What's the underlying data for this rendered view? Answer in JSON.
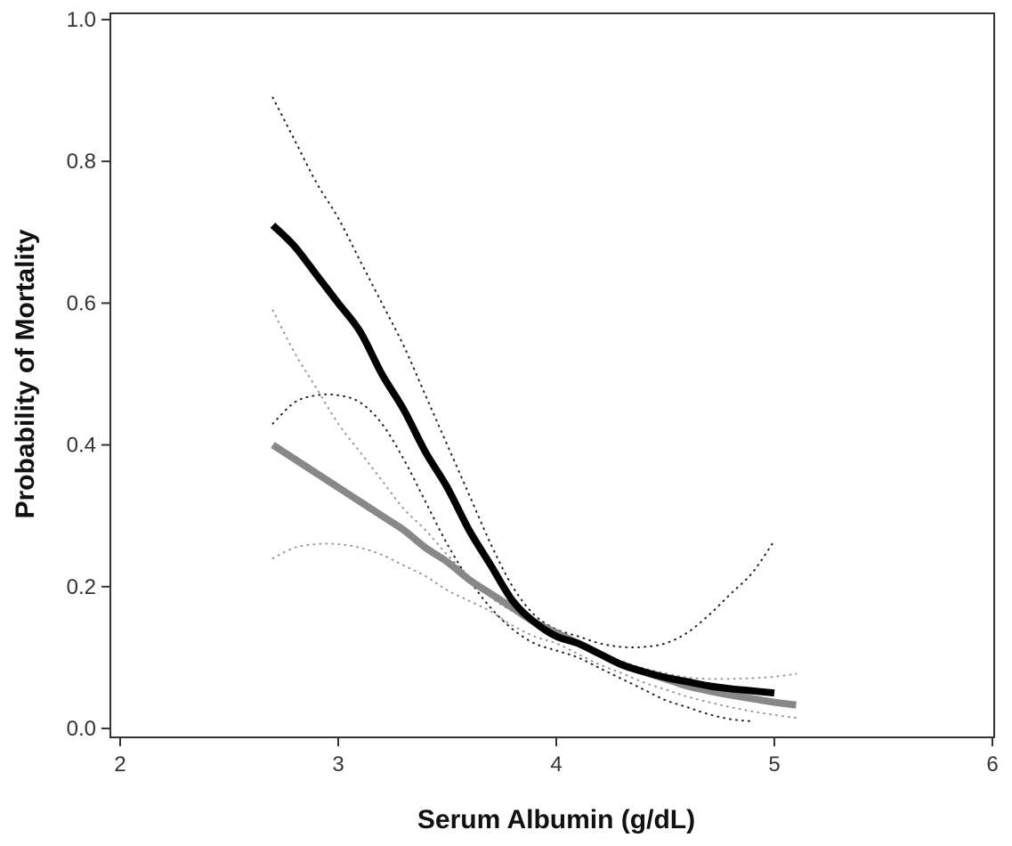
{
  "chart_data": {
    "type": "line",
    "title": "",
    "xlabel": "Serum Albumin (g/dL)",
    "ylabel": "Probability of Mortality",
    "xlim": [
      2,
      6
    ],
    "ylim": [
      0.0,
      1.0
    ],
    "x_ticks": [
      "2",
      "3",
      "4",
      "5",
      "6"
    ],
    "y_ticks": [
      "0.0",
      "0.2",
      "0.4",
      "0.6",
      "0.8",
      "1.0"
    ],
    "grid": false,
    "legend": "none",
    "colors": {
      "black": "#000000",
      "gray": "#888888",
      "black_ci": "#222222",
      "gray_ci": "#999999"
    },
    "series": [
      {
        "style": "solid-thick",
        "color": "#000000",
        "x": [
          2.7,
          2.8,
          2.9,
          3.0,
          3.1,
          3.2,
          3.3,
          3.4,
          3.5,
          3.6,
          3.7,
          3.8,
          3.9,
          4.0,
          4.1,
          4.2,
          4.3,
          4.4,
          4.5,
          4.6,
          4.7,
          4.8,
          4.9,
          5.0
        ],
        "y": [
          0.71,
          0.68,
          0.64,
          0.6,
          0.56,
          0.5,
          0.45,
          0.39,
          0.34,
          0.28,
          0.23,
          0.18,
          0.15,
          0.13,
          0.12,
          0.105,
          0.09,
          0.08,
          0.072,
          0.066,
          0.06,
          0.056,
          0.053,
          0.05
        ]
      },
      {
        "style": "dotted",
        "color": "#222222",
        "x": [
          2.7,
          2.8,
          2.9,
          3.0,
          3.1,
          3.2,
          3.3,
          3.4,
          3.5,
          3.6,
          3.7,
          3.8,
          3.9,
          4.0,
          4.1,
          4.2,
          4.3,
          4.4,
          4.5,
          4.6,
          4.7,
          4.8,
          4.9,
          5.0
        ],
        "y": [
          0.89,
          0.83,
          0.77,
          0.72,
          0.66,
          0.6,
          0.54,
          0.47,
          0.4,
          0.33,
          0.26,
          0.2,
          0.16,
          0.14,
          0.13,
          0.12,
          0.115,
          0.115,
          0.12,
          0.135,
          0.16,
          0.19,
          0.22,
          0.265
        ]
      },
      {
        "style": "dotted",
        "color": "#222222",
        "x": [
          2.7,
          2.8,
          2.9,
          3.0,
          3.1,
          3.2,
          3.3,
          3.4,
          3.5,
          3.6,
          3.7,
          3.8,
          3.9,
          4.0,
          4.1,
          4.2,
          4.3,
          4.4,
          4.5,
          4.6,
          4.7,
          4.8,
          4.9
        ],
        "y": [
          0.43,
          0.46,
          0.47,
          0.47,
          0.46,
          0.43,
          0.38,
          0.32,
          0.26,
          0.21,
          0.17,
          0.14,
          0.12,
          0.11,
          0.1,
          0.085,
          0.07,
          0.055,
          0.04,
          0.03,
          0.02,
          0.013,
          0.01
        ]
      },
      {
        "style": "solid-thick",
        "color": "#888888",
        "x": [
          2.7,
          2.8,
          2.9,
          3.0,
          3.1,
          3.2,
          3.3,
          3.4,
          3.5,
          3.6,
          3.7,
          3.8,
          3.9,
          4.0,
          4.1,
          4.2,
          4.3,
          4.4,
          4.5,
          4.6,
          4.7,
          4.8,
          4.9,
          5.0,
          5.1
        ],
        "y": [
          0.4,
          0.38,
          0.36,
          0.34,
          0.32,
          0.3,
          0.28,
          0.255,
          0.235,
          0.21,
          0.19,
          0.17,
          0.15,
          0.135,
          0.12,
          0.105,
          0.09,
          0.08,
          0.07,
          0.06,
          0.053,
          0.047,
          0.042,
          0.037,
          0.033
        ]
      },
      {
        "style": "dotted",
        "color": "#999999",
        "x": [
          2.7,
          2.8,
          2.9,
          3.0,
          3.1,
          3.2,
          3.3,
          3.4,
          3.5,
          3.6,
          3.7,
          3.8,
          3.9,
          4.0,
          4.1,
          4.2,
          4.3,
          4.4,
          4.5,
          4.6,
          4.7,
          4.8,
          4.9,
          5.0,
          5.1
        ],
        "y": [
          0.59,
          0.53,
          0.48,
          0.43,
          0.39,
          0.35,
          0.31,
          0.28,
          0.245,
          0.215,
          0.185,
          0.165,
          0.15,
          0.135,
          0.12,
          0.105,
          0.095,
          0.085,
          0.078,
          0.072,
          0.07,
          0.07,
          0.071,
          0.073,
          0.077
        ]
      },
      {
        "style": "dotted",
        "color": "#999999",
        "x": [
          2.7,
          2.8,
          2.9,
          3.0,
          3.1,
          3.2,
          3.3,
          3.4,
          3.5,
          3.6,
          3.7,
          3.8,
          3.9,
          4.0,
          4.1,
          4.2,
          4.3,
          4.4,
          4.5,
          4.6,
          4.7,
          4.8,
          4.9,
          5.0,
          5.1
        ],
        "y": [
          0.24,
          0.255,
          0.26,
          0.26,
          0.255,
          0.245,
          0.23,
          0.215,
          0.195,
          0.18,
          0.165,
          0.145,
          0.13,
          0.12,
          0.105,
          0.09,
          0.078,
          0.065,
          0.055,
          0.045,
          0.037,
          0.03,
          0.024,
          0.019,
          0.015
        ]
      }
    ]
  }
}
